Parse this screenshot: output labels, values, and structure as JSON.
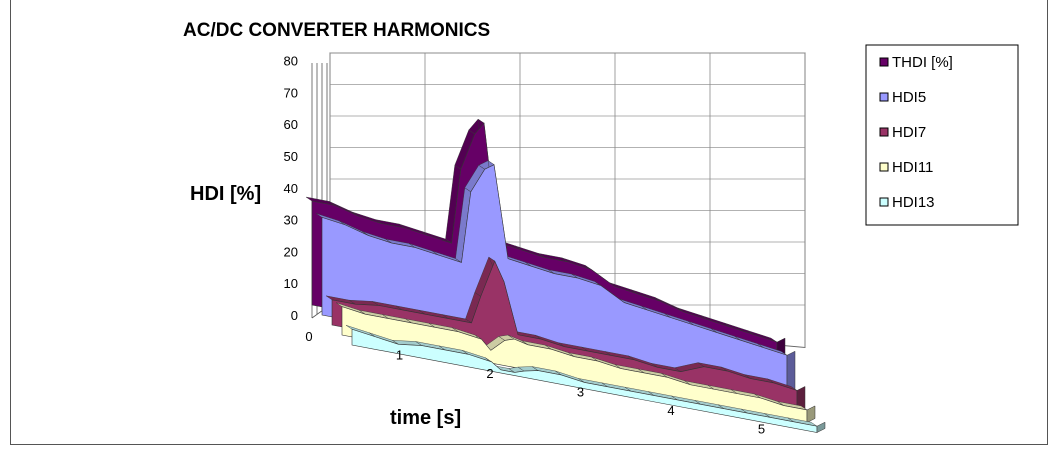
{
  "chart_data": {
    "type": "area",
    "title": "AC/DC CONVERTER HARMONICS",
    "xlabel": "time  [s]",
    "ylabel": "HDI  [%]",
    "ylim": [
      0,
      80
    ],
    "yticks": [
      "0",
      "10",
      "20",
      "30",
      "40",
      "50",
      "60",
      "70",
      "80"
    ],
    "xticks": [
      "0",
      "1",
      "2",
      "3",
      "4",
      "5"
    ],
    "grid": true,
    "legend_position": "right",
    "x": [
      0,
      0.25,
      0.5,
      0.75,
      1.0,
      1.25,
      1.5,
      1.6,
      1.75,
      1.85,
      2.0,
      2.25,
      2.5,
      2.75,
      3.0,
      3.25,
      3.5,
      3.75,
      4.0,
      4.25,
      4.5,
      4.75,
      5.0
    ],
    "series": [
      {
        "name": "THDI  [%]",
        "color": "#660066",
        "values": [
          33,
          33,
          31,
          30,
          30,
          29,
          28,
          52,
          64,
          68,
          31,
          30,
          29,
          29,
          28,
          24,
          23,
          22,
          20,
          19,
          18,
          17,
          16
        ]
      },
      {
        "name": "HDI5",
        "color": "#9999ff",
        "values": [
          31,
          30,
          28,
          27,
          27,
          26,
          25,
          48,
          56,
          58,
          29,
          28,
          27,
          27,
          26,
          22,
          21,
          20,
          19,
          18,
          17,
          16,
          15
        ]
      },
      {
        "name": "HDI7",
        "color": "#993366",
        "values": [
          8,
          8,
          9,
          9,
          9,
          9,
          9,
          18,
          30,
          24,
          8,
          8,
          7,
          7,
          7,
          7,
          6,
          6,
          9,
          9,
          8,
          8,
          7
        ]
      },
      {
        "name": "HDI11",
        "color": "#ffffcc",
        "values": [
          9,
          8,
          8,
          8,
          8,
          8,
          7,
          4,
          8,
          9,
          8,
          8,
          7,
          7,
          6,
          6,
          6,
          5,
          5,
          5,
          5,
          4,
          4
        ]
      },
      {
        "name": "HDI13",
        "color": "#ccffff",
        "values": [
          5,
          4,
          3,
          4,
          4,
          4,
          3,
          1,
          1,
          2,
          3,
          3,
          2,
          2,
          2,
          2,
          2,
          2,
          2,
          2,
          2,
          2,
          2
        ]
      }
    ]
  }
}
